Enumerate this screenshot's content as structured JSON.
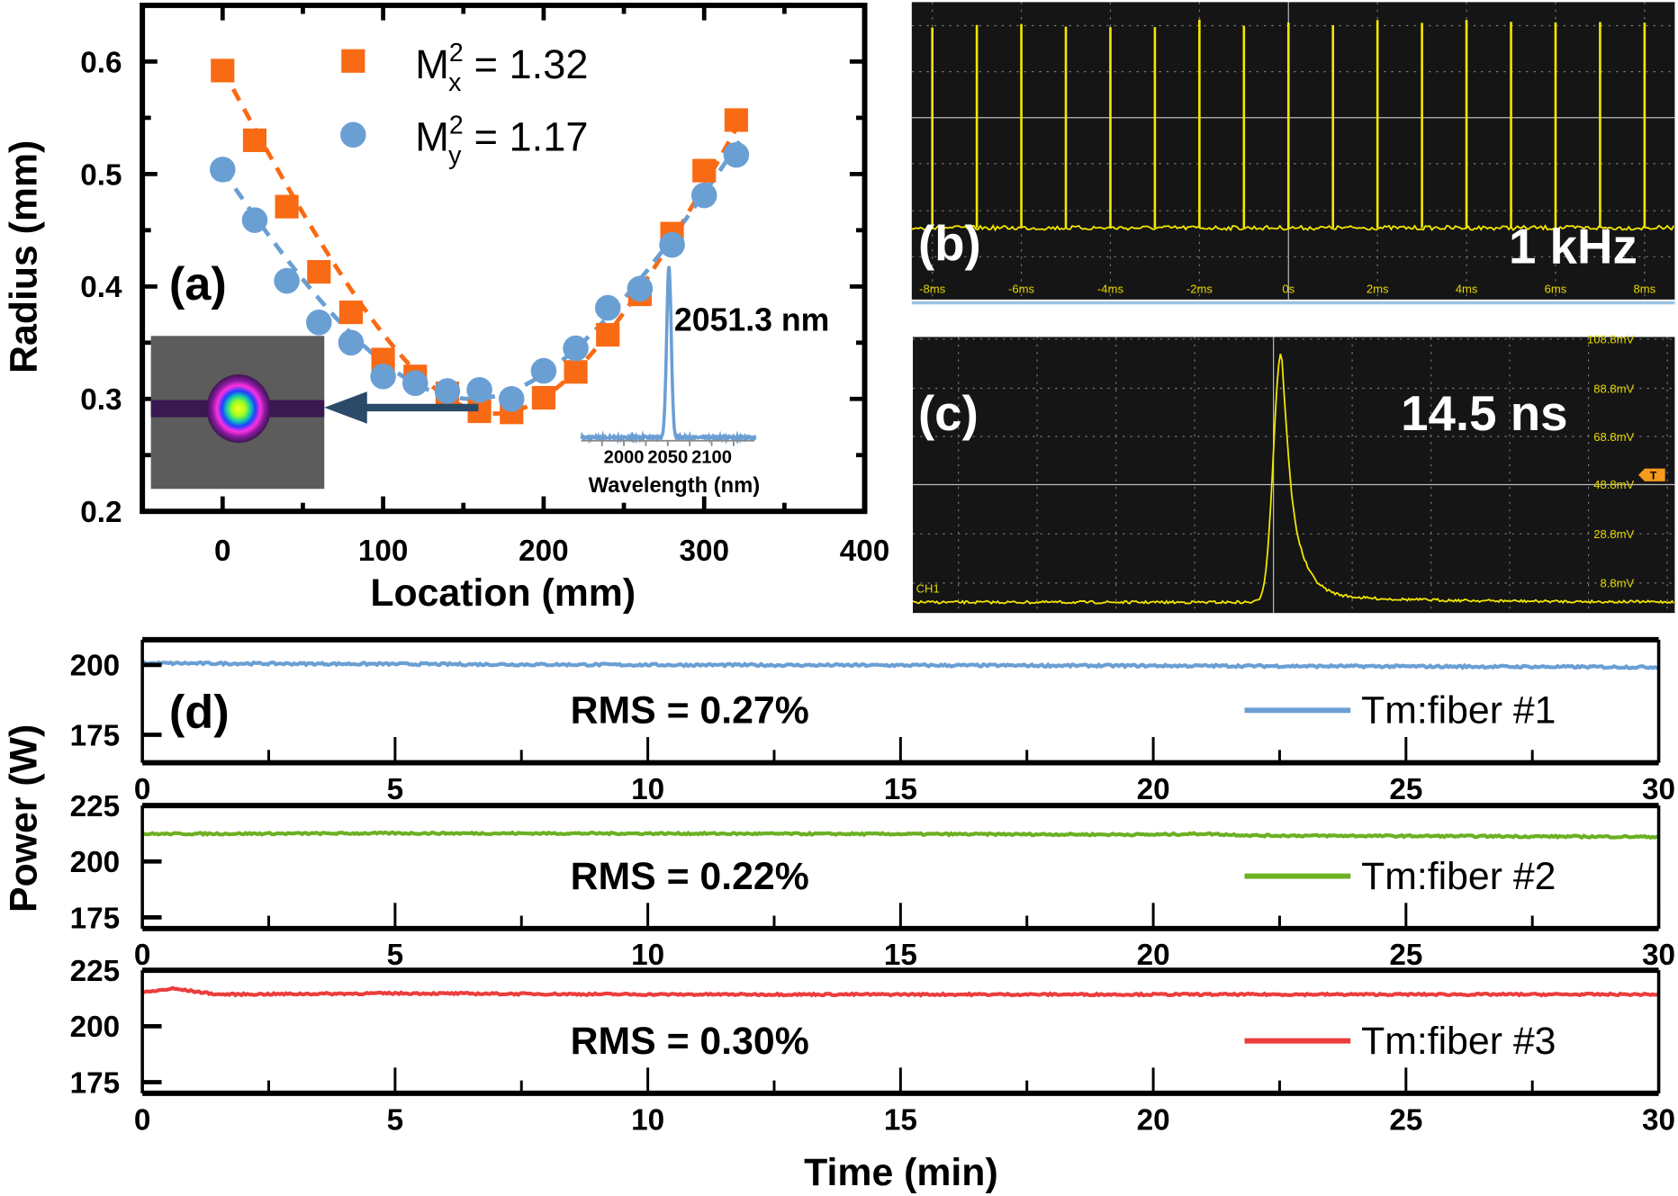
{
  "colors": {
    "mx": "#f96a14",
    "my": "#6a9fd4",
    "fiber1": "#6a9fd4",
    "fiber2": "#6cb023",
    "fiber3": "#ec3d3d",
    "scope_trace": "#f2e600",
    "scope_bg": "#151515",
    "arrow": "#2b4a6a"
  },
  "chart_data": [
    {
      "panel": "(a)",
      "type": "scatter",
      "xlabel": "Location (mm)",
      "ylabel": "Radius (mm)",
      "xlim": [
        -50,
        400
      ],
      "ylim": [
        0.2,
        0.65
      ],
      "xticks": [
        "0",
        "100",
        "200",
        "300",
        "400"
      ],
      "yticks": [
        "0.2",
        "0.3",
        "0.4",
        "0.5",
        "0.6"
      ],
      "x": [
        0,
        20,
        40,
        60,
        80,
        100,
        120,
        140,
        160,
        180,
        200,
        220,
        240,
        260,
        280,
        300,
        320
      ],
      "series": [
        {
          "legend": {
            "base": "M",
            "sup": "2",
            "sub": "x",
            "value": "= 1.32"
          },
          "marker": "square",
          "fit": "dashed",
          "values": [
            0.592,
            0.53,
            0.471,
            0.413,
            0.377,
            0.335,
            0.32,
            0.305,
            0.289,
            0.288,
            0.301,
            0.324,
            0.357,
            0.393,
            0.447,
            0.503,
            0.548
          ]
        },
        {
          "legend": {
            "base": "M",
            "sup": "2",
            "sub": "y",
            "value": "= 1.17"
          },
          "marker": "circle",
          "fit": "dashed",
          "values": [
            0.504,
            0.459,
            0.405,
            0.368,
            0.35,
            0.32,
            0.314,
            0.307,
            0.308,
            0.3,
            0.325,
            0.345,
            0.381,
            0.398,
            0.437,
            0.481,
            0.517
          ]
        }
      ],
      "inset_spectrum": {
        "type": "line",
        "xlabel": "Wavelength (nm)",
        "xticks": [
          "2000",
          "2050",
          "2100"
        ],
        "peak_label": "2051.3 nm",
        "peak_nm": 2051.3
      },
      "inset_beam_profile": "beam-profile-image"
    },
    {
      "panel": "(b)",
      "type": "line",
      "annotation": "1 kHz",
      "xticks": [
        "-8ms",
        "-6ms",
        "-4ms",
        "-2ms",
        "0s",
        "2ms",
        "4ms",
        "6ms",
        "8ms"
      ],
      "pulse_times_ms": [
        -8,
        -7,
        -6,
        -5,
        -4,
        -3,
        -2,
        -1,
        0,
        1,
        2,
        3,
        4,
        5,
        6,
        7,
        8
      ]
    },
    {
      "panel": "(c)",
      "type": "line",
      "annotation": "14.5 ns",
      "channel": "CH1",
      "trigger_marker": "T",
      "yticks": [
        "108.8mV",
        "88.8mV",
        "68.8mV",
        "48.8mV",
        "28.8mV",
        "8.8mV"
      ]
    },
    {
      "panel": "(d)",
      "type": "line",
      "xlabel": "Time (min)",
      "ylabel": "Power (W)",
      "xlim": [
        0,
        30
      ],
      "xticks": [
        "0",
        "5",
        "10",
        "15",
        "20",
        "25",
        "30"
      ],
      "subplots": [
        {
          "name": "Tm:fiber #1",
          "rms": "RMS = 0.27%",
          "ylim": [
            165,
            209
          ],
          "yticks": [
            "175",
            "200"
          ],
          "points": [
            [
              0,
              200.6
            ],
            [
              10,
              200.0
            ],
            [
              20,
              199.7
            ],
            [
              30,
              199.2
            ]
          ]
        },
        {
          "name": "Tm:fiber #2",
          "rms": "RMS = 0.22%",
          "ylim": [
            170,
            225
          ],
          "yticks": [
            "175",
            "200",
            "225"
          ],
          "points": [
            [
              0,
              212.3
            ],
            [
              5,
              212.6
            ],
            [
              10,
              212.5
            ],
            [
              20,
              212.0
            ],
            [
              21,
              212.4
            ],
            [
              22,
              211.6
            ],
            [
              30,
              211.0
            ]
          ]
        },
        {
          "name": "Tm:fiber #3",
          "rms": "RMS = 0.30%",
          "ylim": [
            170,
            225
          ],
          "yticks": [
            "175",
            "200",
            "225"
          ],
          "points": [
            [
              0,
              215.0
            ],
            [
              0.6,
              216.8
            ],
            [
              1.5,
              214.2
            ],
            [
              5,
              214.7
            ],
            [
              10,
              214.2
            ],
            [
              30,
              214.2
            ]
          ]
        }
      ]
    }
  ]
}
